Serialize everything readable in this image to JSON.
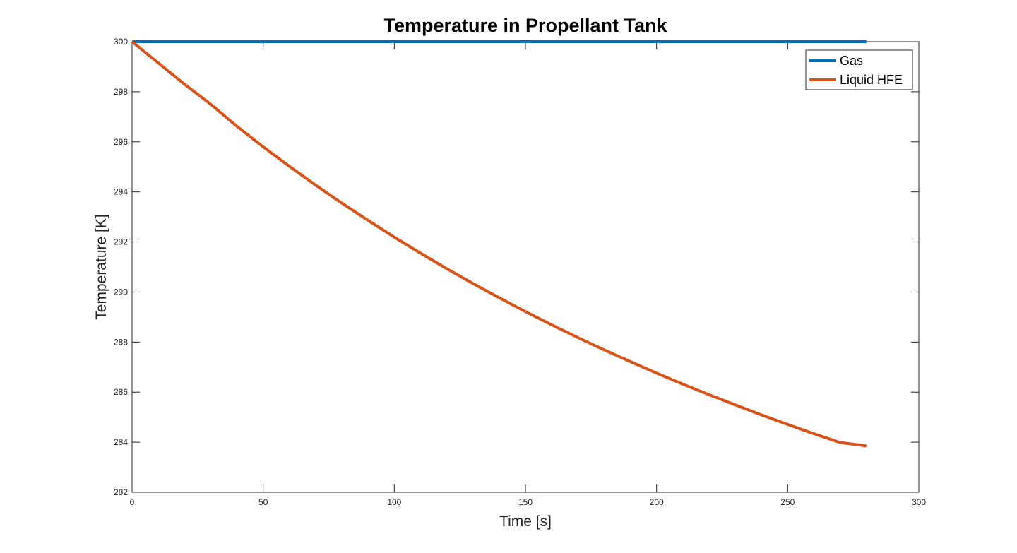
{
  "chart_data": {
    "type": "line",
    "title": "Temperature in Propellant Tank",
    "xlabel": "Time [s]",
    "ylabel": "Temperature [K]",
    "xlim": [
      0,
      300
    ],
    "ylim": [
      282,
      300
    ],
    "xticks": [
      0,
      50,
      100,
      150,
      200,
      250,
      300
    ],
    "yticks": [
      282,
      284,
      286,
      288,
      290,
      292,
      294,
      296,
      298,
      300
    ],
    "grid": false,
    "legend_position": "top-right",
    "series": [
      {
        "name": "Gas",
        "color": "#0072BD",
        "x": [
          0,
          280
        ],
        "y": [
          300,
          300
        ]
      },
      {
        "name": "Liquid HFE",
        "color": "#D95319",
        "x": [
          0,
          10,
          20,
          30,
          40,
          50,
          60,
          70,
          80,
          90,
          100,
          110,
          120,
          130,
          140,
          150,
          160,
          170,
          180,
          190,
          200,
          210,
          220,
          230,
          240,
          250,
          260,
          270,
          280
        ],
        "y": [
          300.0,
          299.15,
          298.3,
          297.5,
          296.62,
          295.8,
          295.02,
          294.27,
          293.55,
          292.86,
          292.19,
          291.55,
          290.93,
          290.34,
          289.77,
          289.22,
          288.69,
          288.18,
          287.69,
          287.22,
          286.76,
          286.32,
          285.9,
          285.49,
          285.09,
          284.71,
          284.34,
          283.99,
          283.85
        ]
      }
    ]
  }
}
